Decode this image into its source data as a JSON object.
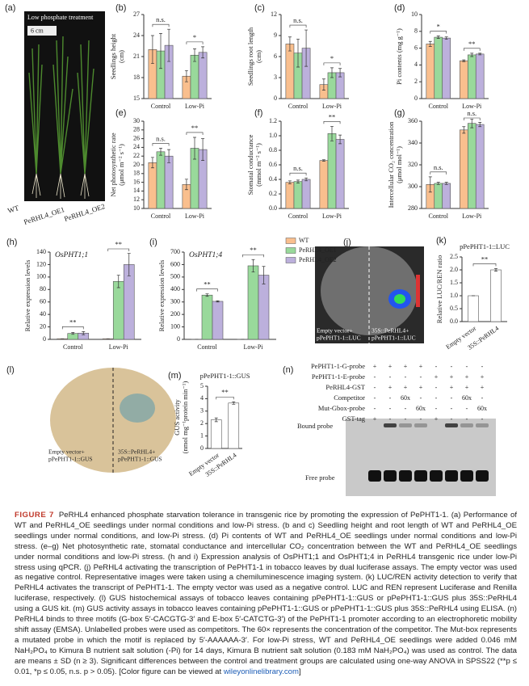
{
  "chart_data": [
    {
      "type": "bar",
      "label": "(b)",
      "ylabel": [
        "Seedlings height",
        "(cm)"
      ],
      "categories": [
        "Control",
        "Low-Pi"
      ],
      "series": [
        {
          "color": "#f9bf8e",
          "values": [
            22,
            18.2
          ],
          "errors": [
            2,
            0.8
          ]
        },
        {
          "color": "#99d99b",
          "values": [
            21.8,
            21.2
          ],
          "errors": [
            2.5,
            0.9
          ]
        },
        {
          "color": "#bcb0dc",
          "values": [
            22.6,
            21.6
          ],
          "errors": [
            2.3,
            0.8
          ]
        }
      ],
      "ylim": [
        15,
        27
      ],
      "yticks": [
        15,
        18,
        21,
        24,
        27
      ],
      "annotations": [
        "n.s.",
        "*"
      ]
    },
    {
      "type": "bar",
      "label": "(c)",
      "ylabel": [
        "Seedlings root length",
        "(cm)"
      ],
      "categories": [
        "Control",
        "Low-Pi"
      ],
      "series": [
        {
          "color": "#f9bf8e",
          "values": [
            7.8,
            2
          ],
          "errors": [
            1,
            0.8
          ]
        },
        {
          "color": "#99d99b",
          "values": [
            6.5,
            3.7
          ],
          "errors": [
            2,
            0.7
          ]
        },
        {
          "color": "#bcb0dc",
          "values": [
            7.2,
            3.7
          ],
          "errors": [
            2.6,
            0.6
          ]
        }
      ],
      "ylim": [
        0,
        12
      ],
      "yticks": [
        0,
        3,
        6,
        9,
        12
      ],
      "annotations": [
        "n.s.",
        "*"
      ]
    },
    {
      "type": "bar",
      "label": "(d)",
      "ylabel": [
        "Pi contents (mg g⁻¹)"
      ],
      "categories": [
        "Control",
        "Low-Pi"
      ],
      "series": [
        {
          "color": "#f9bf8e",
          "values": [
            6.5,
            4.5
          ],
          "errors": [
            0.3,
            0.1
          ]
        },
        {
          "color": "#99d99b",
          "values": [
            7.3,
            5.2
          ],
          "errors": [
            0.15,
            0.2
          ]
        },
        {
          "color": "#bcb0dc",
          "values": [
            7.2,
            5.3
          ],
          "errors": [
            0.15,
            0.1
          ]
        }
      ],
      "ylim": [
        0,
        10
      ],
      "yticks": [
        0,
        2,
        4,
        6,
        8,
        10
      ],
      "annotations": [
        "*",
        "**"
      ]
    },
    {
      "type": "bar",
      "label": "(e)",
      "ylabel": [
        "Net photosynthetic rate",
        "(μmol m⁻² s⁻¹)"
      ],
      "categories": [
        "Control",
        "Low-Pi"
      ],
      "series": [
        {
          "color": "#f9bf8e",
          "values": [
            20.5,
            15.5
          ],
          "errors": [
            1.2,
            1.2
          ]
        },
        {
          "color": "#99d99b",
          "values": [
            23,
            23.8
          ],
          "errors": [
            0.8,
            2.5
          ]
        },
        {
          "color": "#bcb0dc",
          "values": [
            22,
            23.5
          ],
          "errors": [
            1.5,
            2.5
          ]
        }
      ],
      "ylim": [
        10,
        30
      ],
      "yticks": [
        10,
        12,
        14,
        16,
        18,
        20,
        22,
        24,
        26,
        28,
        30
      ],
      "annotations": [
        "n.s.",
        "**"
      ]
    },
    {
      "type": "bar",
      "label": "(f)",
      "ylabel": [
        "Stomatal conductance",
        "(mmol m⁻² s⁻¹)"
      ],
      "categories": [
        "Control",
        "Low-Pi"
      ],
      "series": [
        {
          "color": "#f9bf8e",
          "values": [
            0.36,
            0.66
          ],
          "errors": [
            0.02,
            0.01
          ]
        },
        {
          "color": "#99d99b",
          "values": [
            0.37,
            1.03
          ],
          "errors": [
            0.02,
            0.1
          ]
        },
        {
          "color": "#bcb0dc",
          "values": [
            0.4,
            0.95
          ],
          "errors": [
            0.02,
            0.06
          ]
        }
      ],
      "ylim": [
        0,
        1.2
      ],
      "yticks": [
        {
          "value": 0,
          "label": "0.0"
        },
        0.2,
        0.4,
        0.6,
        0.8,
        {
          "value": 1,
          "label": "1.0"
        },
        1.2
      ],
      "annotations": [
        "n.s.",
        "**"
      ]
    },
    {
      "type": "bar",
      "label": "(g)",
      "ylabel": [
        "Intercellular CO₂ concentration",
        "(μmol mol⁻¹)"
      ],
      "categories": [
        "Control",
        "Low-Pi"
      ],
      "series": [
        {
          "color": "#f9bf8e",
          "values": [
            302,
            352
          ],
          "errors": [
            7,
            3
          ]
        },
        {
          "color": "#99d99b",
          "values": [
            303,
            358
          ],
          "errors": [
            1,
            4
          ]
        },
        {
          "color": "#bcb0dc",
          "values": [
            303,
            357
          ],
          "errors": [
            1,
            2
          ]
        }
      ],
      "ylim": [
        280,
        360
      ],
      "yticks": [
        280,
        300,
        320,
        340,
        360
      ],
      "annotations": [
        "n.s.",
        "n.s."
      ]
    },
    {
      "type": "bar",
      "label": "(h)",
      "title": "OsPHT1;1",
      "ylabel": [
        "Relative expression levels"
      ],
      "categories": [
        "Control",
        "Low-Pi"
      ],
      "series": [
        {
          "color": "#f9bf8e",
          "values": [
            1,
            1
          ],
          "errors": [
            0,
            0
          ]
        },
        {
          "color": "#99d99b",
          "values": [
            9.5,
            93
          ],
          "errors": [
            1.5,
            10
          ]
        },
        {
          "color": "#bcb0dc",
          "values": [
            10,
            120
          ],
          "errors": [
            2.5,
            18
          ]
        }
      ],
      "ylim": [
        0,
        140
      ],
      "yticks": [
        0,
        20,
        40,
        60,
        80,
        100,
        120,
        140
      ],
      "annotations": [
        "**",
        "**"
      ]
    },
    {
      "type": "bar",
      "label": "(i)",
      "title": "OsPHT1;4",
      "ylabel": [
        "Relative expression levels"
      ],
      "categories": [
        "Control",
        "Low-Pi"
      ],
      "series": [
        {
          "name": "WT",
          "color": "#f9bf8e",
          "values": [
            1,
            1
          ],
          "errors": [
            0,
            0
          ]
        },
        {
          "name": "PeRHL4_OE1",
          "color": "#99d99b",
          "values": [
            355,
            590
          ],
          "errors": [
            10,
            50
          ]
        },
        {
          "name": "PeRHL4_OE2",
          "color": "#bcb0dc",
          "values": [
            305,
            515
          ],
          "errors": [
            5,
            70
          ]
        }
      ],
      "ylim": [
        0,
        700
      ],
      "yticks": [
        0,
        100,
        200,
        300,
        400,
        500,
        600,
        700
      ],
      "annotations": [
        "**",
        "**"
      ],
      "legend": "upper right"
    },
    {
      "type": "bar",
      "label": "(k)",
      "title": "pPePHT1-1::LUC",
      "ylabel": [
        "Relative LUC/REN ratio"
      ],
      "categories": [
        "Empty vector",
        "35S::PeRHL4"
      ],
      "series": [
        {
          "color": "#ffffff",
          "values": [
            1,
            2
          ],
          "errors": [
            0,
            0.05
          ]
        }
      ],
      "ylim": [
        0,
        2.5
      ],
      "yticks": [
        {
          "value": 0,
          "label": "0.0"
        },
        0.5,
        {
          "value": 1,
          "label": "1.0"
        },
        1.5,
        {
          "value": 2,
          "label": "2.0"
        },
        2.5
      ],
      "annotations": [
        "**"
      ]
    },
    {
      "type": "bar",
      "label": "(m)",
      "title": "pPePHT1-1::GUS",
      "ylabel": [
        "GUS activity",
        "(nmol mg⁻¹protein min⁻¹)"
      ],
      "categories": [
        "Empty vector",
        "35S::PeRHL4"
      ],
      "series": [
        {
          "color": "#ffffff",
          "values": [
            2.3,
            3.65
          ],
          "errors": [
            0.15,
            0.1
          ]
        }
      ],
      "ylim": [
        0,
        5
      ],
      "yticks": [
        0,
        1,
        2,
        3,
        4,
        5
      ],
      "annotations": [
        "**"
      ]
    }
  ],
  "photo_a": {
    "label": "(a)",
    "title": "Low phosphate treatment",
    "scale": "6 cm",
    "plants": [
      "WT",
      "PeRHL4_OE1",
      "PeRHL4_OE2"
    ]
  },
  "photo_j": {
    "label": "(j)",
    "left": [
      "Empty vector+",
      "pPePHT1-1::LUC"
    ],
    "right": [
      "35S::PeRHL4+",
      "pPePHT1-1::LUC"
    ]
  },
  "photo_l": {
    "label": "(l)",
    "left": [
      "Empty vector+",
      "pPePHT1-1::GUS"
    ],
    "right": [
      "35S::PeRHL4+",
      "pPePHT1-1::GUS"
    ]
  },
  "emsa": {
    "label": "(n)",
    "rows": [
      {
        "name": "PePHT1-1-G-probe",
        "cells": [
          "+",
          "+",
          "+",
          "+",
          "-",
          "-",
          "-",
          "-"
        ]
      },
      {
        "name": "PePHT1-1-E-probe",
        "cells": [
          "-",
          "-",
          "-",
          "-",
          "+",
          "+",
          "+",
          "+"
        ]
      },
      {
        "name": "PeRHL4-GST",
        "cells": [
          "-",
          "+",
          "+",
          "+",
          "-",
          "+",
          "+",
          "+"
        ]
      },
      {
        "name": "Competitor",
        "cells": [
          "-",
          "-",
          "60x",
          "-",
          "-",
          "-",
          "60x",
          "-"
        ]
      },
      {
        "name": "Mut-Gbox-probe",
        "cells": [
          "-",
          "-",
          "-",
          "60x",
          "-",
          "-",
          "-",
          "60x"
        ]
      },
      {
        "name": "GST-tag",
        "cells": [
          "+",
          "-",
          "-",
          "-",
          "+",
          "-",
          "-",
          "-"
        ]
      }
    ],
    "bound": "Bound probe",
    "free": "Free probe"
  },
  "caption": {
    "label": "FIGURE 7",
    "text": "PeRHL4 enhanced phosphate starvation tolerance in transgenic rice by promoting the expression of PePHT1-1. (a) Performance of WT and PeRHL4_OE seedlings under normal conditions and low-Pi stress. (b and c) Seedling height and root length of WT and PeRHL4_OE seedlings under normal conditions, and low-Pi stress. (d) Pi contents of WT and PeRHL4_OE seedlings under normal conditions and low-Pi stress. (e–g) Net photosynthetic rate, stomatal conductance and intercellular CO₂ concentration between the WT and PeRHL4_OE seedlings under normal conditions and low-Pi stress. (h and i) Expression analysis of OsPHT1;1 and OsPHT1;4 in PeRHL4 transgenic rice under low-Pi stress using qPCR. (j) PeRHL4 activating the transcription of PePHT1-1 in tobacco leaves by dual luciferase assays. The empty vector was used as negative control. Representative images were taken using a chemiluminescence imaging system. (k) LUC/REN activity detection to verify that PeRHL4 activates the transcript of PePHT1-1. The empty vector was used as a negative control. LUC and REN represent Luciferase and Renilla luciferase, respectively. (l) GUS histochemical assays of tobacco leaves containing pPePHT1-1::GUS or pPePHT1-1::GUS plus 35S::PeRHL4 using a GUS kit. (m) GUS activity assays in tobacco leaves containing pPePHT1-1::GUS or pPePHT1-1::GUS plus 35S::PeRHL4 using ELISA. (n) PeRHL4 binds to three motifs (G-box 5′-CACGTG-3′ and E-box 5′-CATCTG-3′) of the PePHT1-1 promoter according to an electrophoretic mobility shift assay (EMSA). Unlabelled probes were used as competitors. The 60× represents the concentration of the competitor. The Mut-box represents a mutated probe in which the motif is replaced by 5′-AAAAAA-3′. For low-Pi stress, WT and PeRHL4_OE seedlings were added 0.046 mM NaH₂PO₄ to Kimura B nutrient salt solution (-Pi) for 14 days, Kimura B nutrient salt solution (0.183 mM NaH₂PO₄) was used as control. The data are means ± SD (n ≥ 3). Significant differences between the control and treatment groups are calculated using one-way ANOVA in SPSS22 (**p ≤ 0.01, *p ≤ 0.05, n.s. p > 0.05). [Color figure can be viewed at",
    "link": "wileyonlinelibrary.com",
    "end": "]"
  }
}
